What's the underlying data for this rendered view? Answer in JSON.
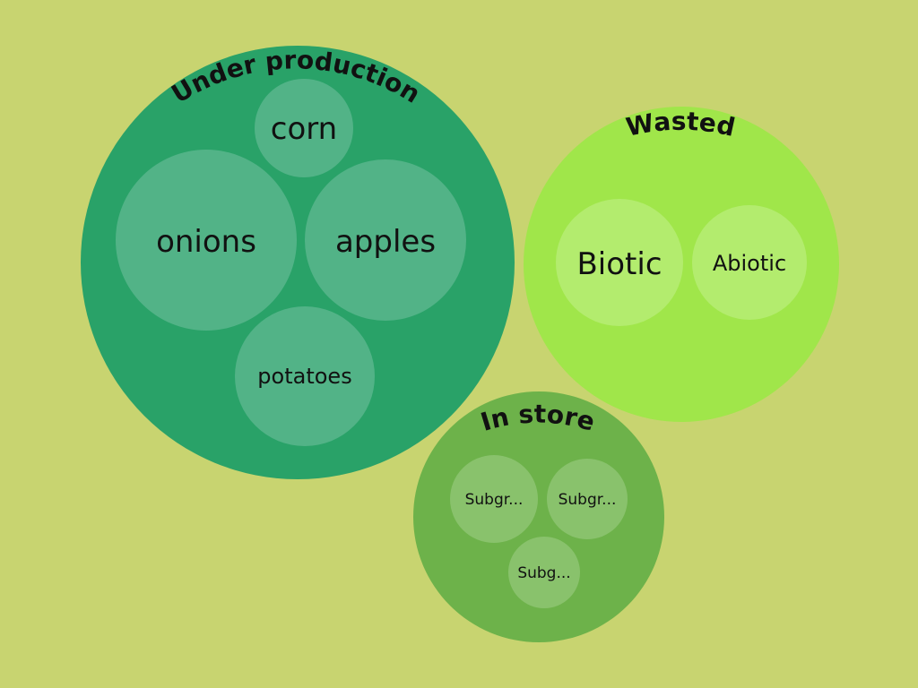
{
  "colors": {
    "background": "#c8d470",
    "under_production": "#29a268",
    "under_production_sub": "#52b387",
    "wasted": "#a0e64a",
    "wasted_sub": "#b3ec6e",
    "in_store": "#6db24a",
    "in_store_sub": "#89c26c"
  },
  "groups": [
    {
      "key": "under_production",
      "title": "Under production",
      "children": [
        "corn",
        "onions",
        "apples",
        "potatoes"
      ]
    },
    {
      "key": "wasted",
      "title": "Wasted",
      "children": [
        "Biotic",
        "Abiotic"
      ]
    },
    {
      "key": "in_store",
      "title": "In store",
      "children": [
        "Subgr...",
        "Subgr...",
        "Subg..."
      ]
    }
  ]
}
